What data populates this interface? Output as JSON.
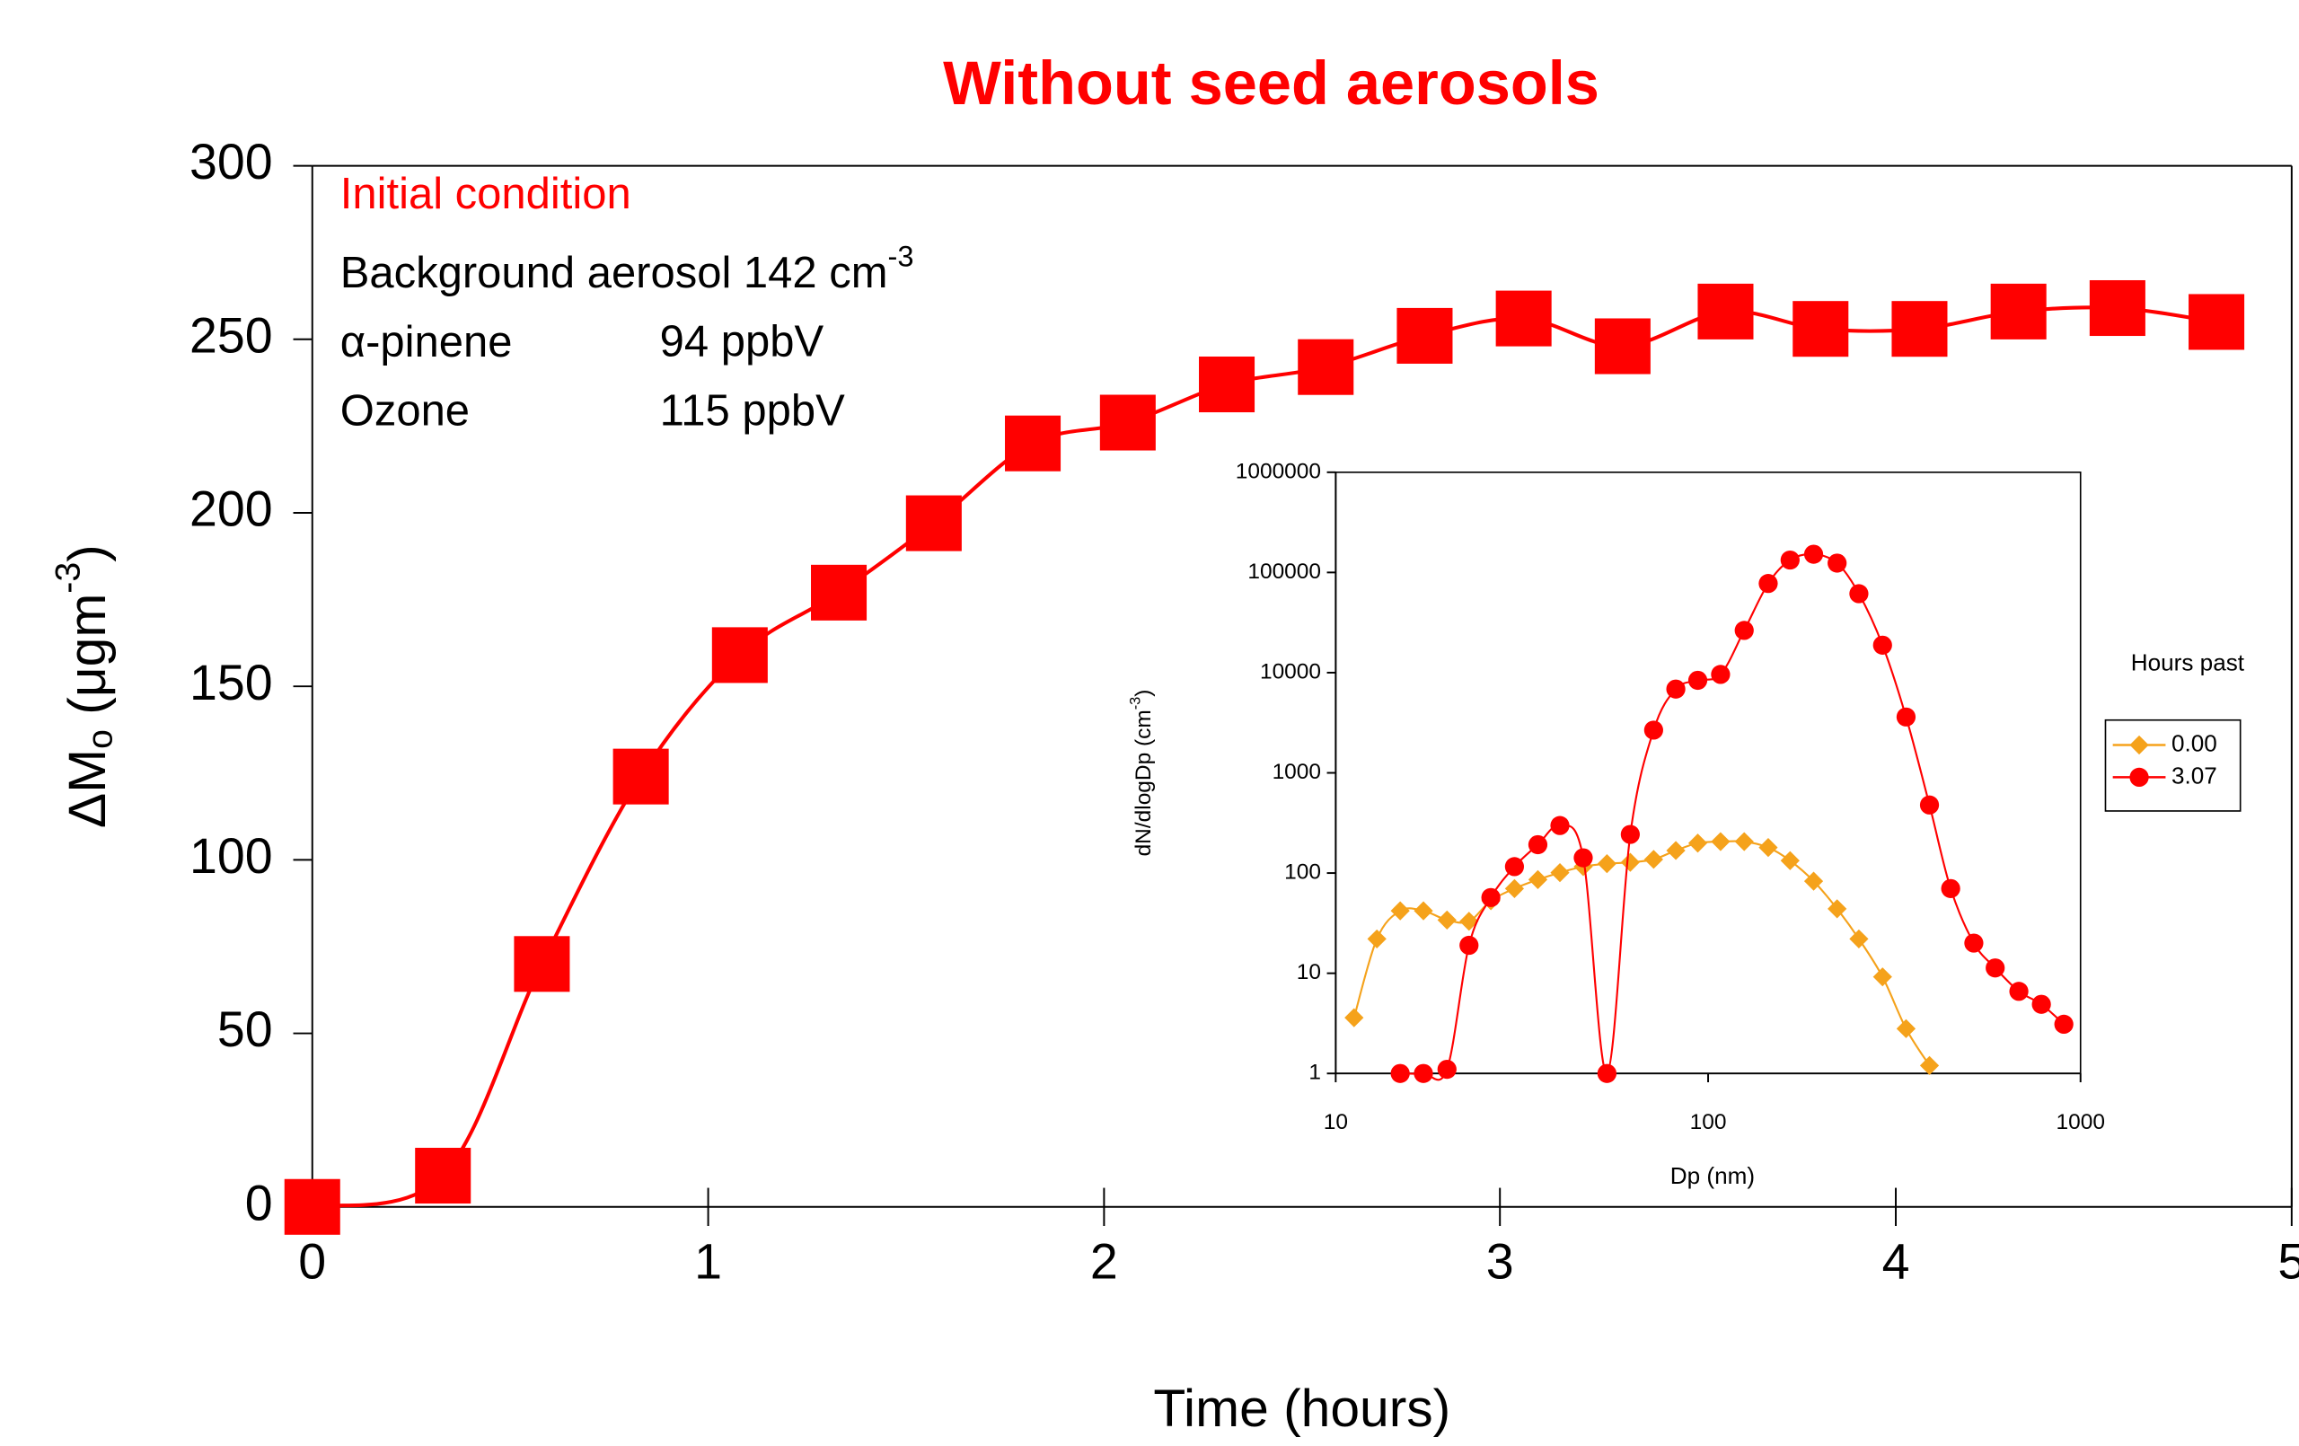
{
  "chart_data": [
    {
      "type": "line",
      "title": "Without seed aerosols",
      "x_label": "Time (hours)",
      "y_label": {
        "main": "ΔM",
        "sub": "o",
        "unit": " (μgm",
        "sup": "-3",
        "end": ")"
      },
      "annotations": {
        "heading": "Initial condition",
        "lines": [
          {
            "label": "Background aerosol 142 cm",
            "sup": "-3"
          },
          {
            "label": "α-pinene",
            "value": "94 ppbV"
          },
          {
            "label": "Ozone",
            "value": "115 ppbV"
          }
        ]
      },
      "xlim": [
        0,
        5
      ],
      "ylim": [
        0,
        300
      ],
      "xticks": [
        0,
        1,
        2,
        3,
        4,
        5
      ],
      "yticks": [
        0,
        50,
        100,
        150,
        200,
        250,
        300
      ],
      "series": [
        {
          "color": "#ff0000",
          "marker": "square",
          "x": [
            0,
            0.33,
            0.58,
            0.83,
            1.08,
            1.33,
            1.57,
            1.82,
            2.06,
            2.31,
            2.56,
            2.81,
            3.06,
            3.31,
            3.57,
            3.81,
            4.06,
            4.31,
            4.56,
            4.81
          ],
          "values": [
            0,
            9,
            70,
            124,
            159,
            177,
            197,
            220,
            226,
            237,
            242,
            251,
            256,
            248,
            258,
            253,
            253,
            258,
            259,
            255
          ]
        }
      ]
    },
    {
      "type": "line",
      "x_label": "Dp (nm)",
      "y_label": {
        "main": "dN/dlogDp (cm",
        "sup": "-3",
        "end": ")"
      },
      "xlog": true,
      "ylog": true,
      "xlim": [
        10,
        1000
      ],
      "ylim": [
        1,
        1000000
      ],
      "xticks": [
        10,
        100,
        1000
      ],
      "yticks": [
        1,
        10,
        100,
        1000,
        10000,
        100000,
        1000000
      ],
      "legend_title": "Hours past",
      "series": [
        {
          "name": "0.00",
          "color": "#f5a21b",
          "marker": "diamond",
          "x": [
            11.2,
            12.9,
            14.9,
            17.2,
            19.9,
            22.8,
            26.1,
            30.2,
            34.9,
            40,
            46.2,
            53.5,
            61.8,
            71.4,
            81.9,
            93.8,
            108,
            125,
            145,
            166,
            192,
            222,
            254,
            294,
            340,
            393
          ],
          "values": [
            3.6,
            22,
            42,
            42,
            34,
            33,
            53,
            70,
            86,
            101,
            116,
            124,
            128,
            137,
            168,
            199,
            206,
            206,
            180,
            133,
            83,
            44,
            22,
            9.2,
            2.8,
            1.2
          ]
        },
        {
          "name": "3.07",
          "color": "#ff0000",
          "marker": "circle",
          "x": [
            14.9,
            17.2,
            19.9,
            22.8,
            26.1,
            30.2,
            34.9,
            40,
            46.2,
            53.5,
            61.8,
            71.4,
            81.9,
            93.8,
            108,
            125,
            145,
            166,
            192,
            222,
            254,
            294,
            340,
            393,
            448,
            517,
            590,
            683,
            785,
            902
          ],
          "values": [
            1,
            1,
            1.1,
            19,
            57,
            116,
            192,
            298,
            142,
            1,
            243,
            2670,
            6860,
            8390,
            9600,
            26400,
            77600,
            133000,
            152000,
            124000,
            61400,
            18800,
            3610,
            478,
            70,
            20,
            11.3,
            6.6,
            4.9,
            3.1
          ]
        }
      ]
    }
  ]
}
